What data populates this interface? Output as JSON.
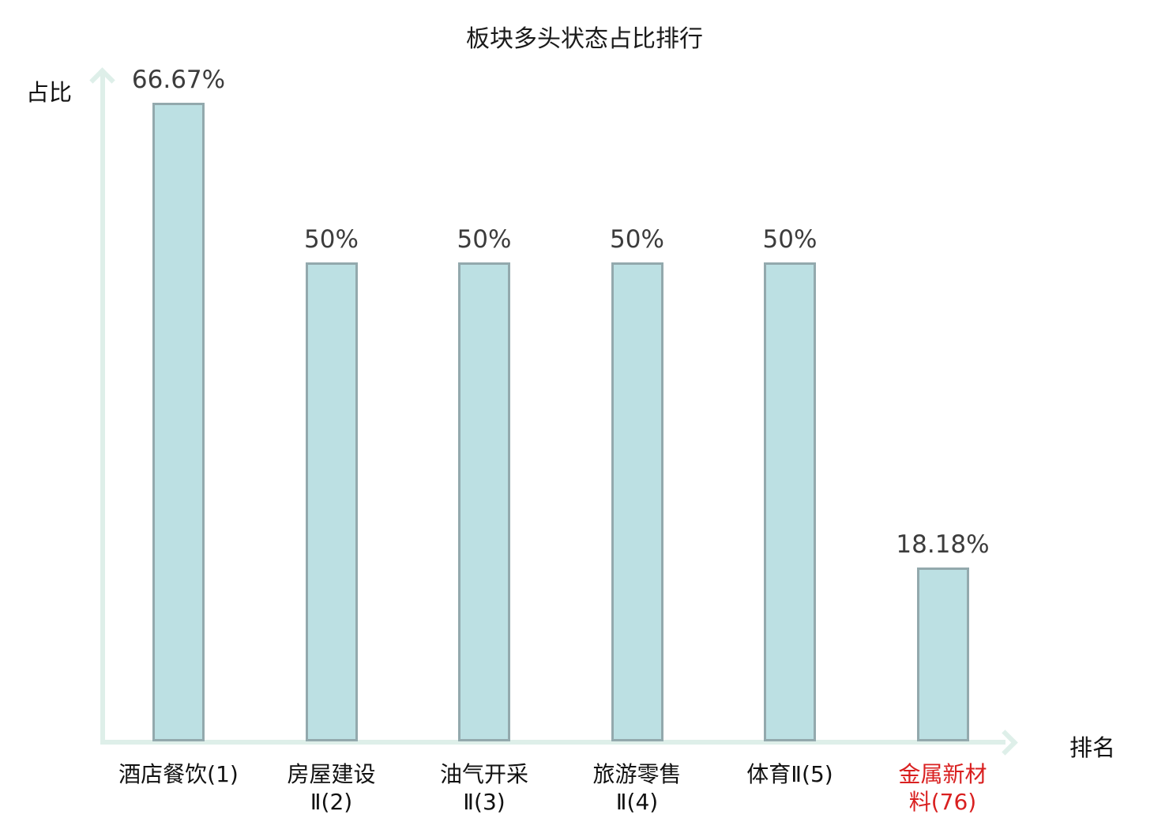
{
  "chart_data": {
    "type": "bar",
    "title": "板块多头状态占比排行",
    "xlabel": "排名",
    "ylabel": "占比",
    "categories": [
      "酒店餐饮(1)",
      "房屋建设Ⅱ(2)",
      "油气开采Ⅱ(3)",
      "旅游零售Ⅱ(4)",
      "体育Ⅱ(5)",
      "金属新材料(76)"
    ],
    "category_lines": [
      [
        "酒店餐饮(1)"
      ],
      [
        "房屋建设",
        "Ⅱ(2)"
      ],
      [
        "油气开采",
        "Ⅱ(3)"
      ],
      [
        "旅游零售",
        "Ⅱ(4)"
      ],
      [
        "体育Ⅱ(5)"
      ],
      [
        "金属新材",
        "料(76)"
      ]
    ],
    "values": [
      66.67,
      50,
      50,
      50,
      50,
      18.18
    ],
    "value_labels": [
      "66.67%",
      "50%",
      "50%",
      "50%",
      "50%",
      "18.18%"
    ],
    "highlighted_category_index": 5,
    "ylim": [
      0,
      70
    ],
    "grid": false,
    "legend": "none",
    "colors": {
      "bar_fill": "#bce0e3",
      "bar_border": "#93a9ad",
      "axis": "#deefe9",
      "value_label": "#3c3c3c",
      "category_label": "#111111",
      "highlight_label": "#d92020"
    }
  }
}
